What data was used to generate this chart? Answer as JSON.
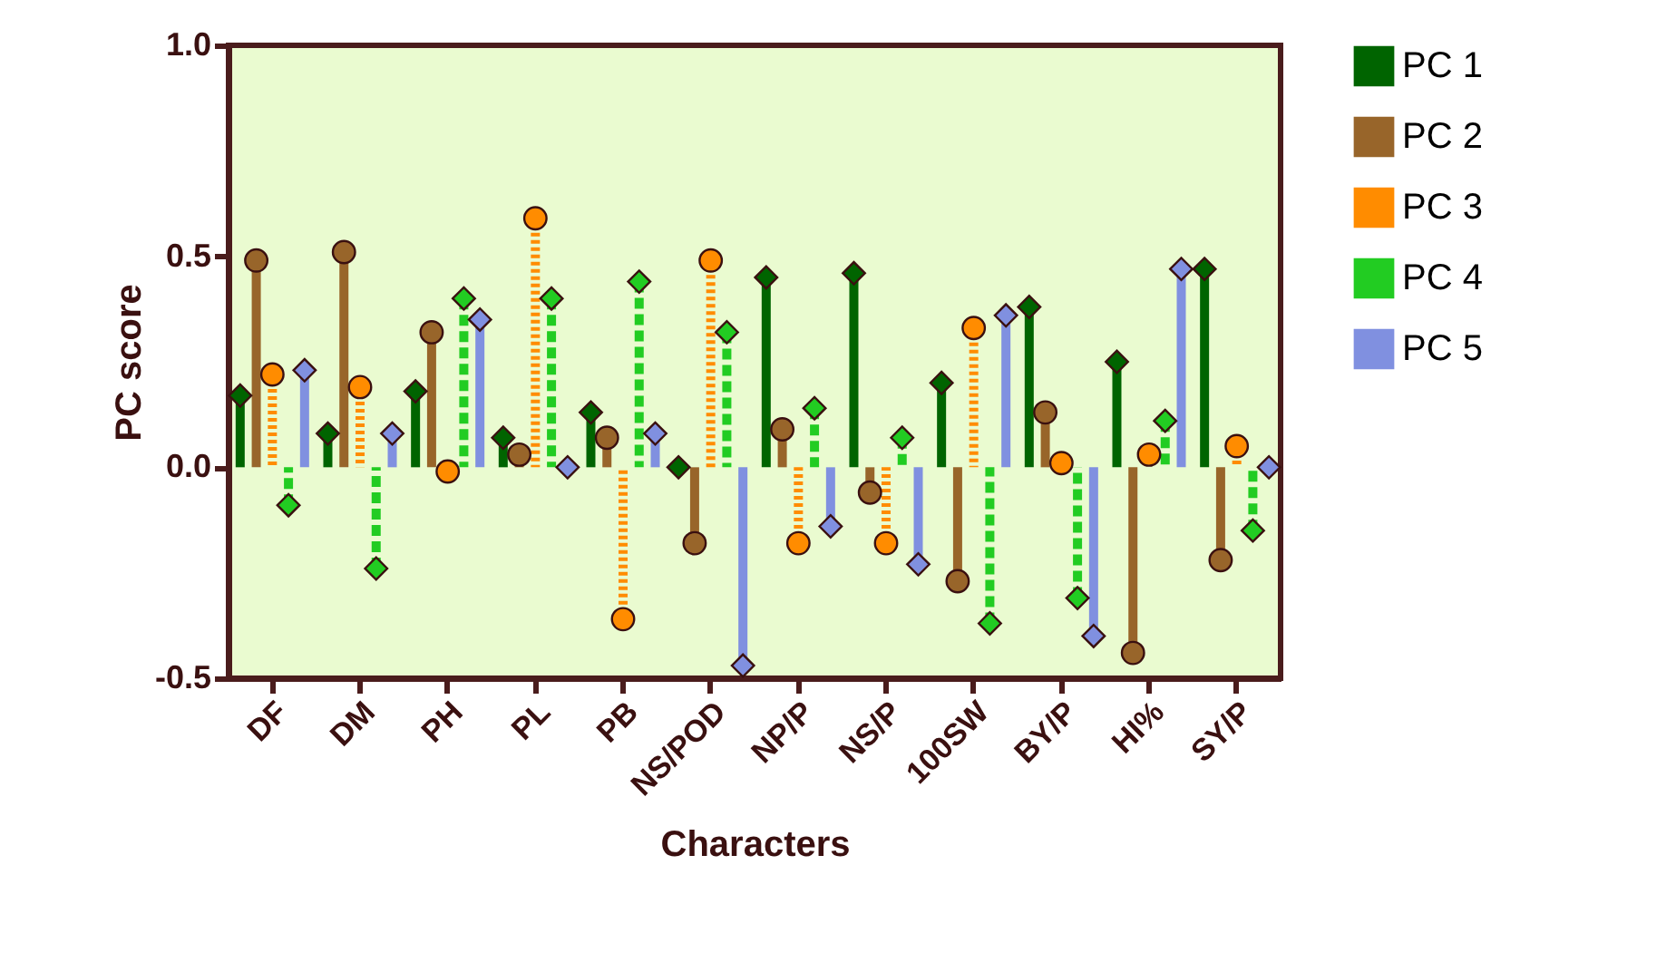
{
  "chart_data": {
    "type": "lollipop",
    "xlabel": "Characters",
    "ylabel": "PC score",
    "categories": [
      "DF",
      "DM",
      "PH",
      "PL",
      "PB",
      "NS/POD",
      "NP/P",
      "NS/P",
      "100SW",
      "BY/P",
      "HI%",
      "SY/P"
    ],
    "series": [
      {
        "name": "PC 1",
        "color": "#006400",
        "marker": "diamond",
        "values": [
          0.17,
          0.08,
          0.18,
          0.07,
          0.13,
          0.0,
          0.45,
          0.46,
          0.2,
          0.38,
          0.25,
          0.47
        ]
      },
      {
        "name": "PC 2",
        "color": "#98652a",
        "marker": "circle",
        "values": [
          0.49,
          0.51,
          0.32,
          0.03,
          0.07,
          -0.18,
          0.09,
          -0.06,
          -0.27,
          0.13,
          -0.44,
          -0.22
        ]
      },
      {
        "name": "PC 3",
        "color": "#ff8c00",
        "marker": "circle",
        "line_style": "dotted",
        "values": [
          0.22,
          0.19,
          -0.01,
          0.59,
          -0.36,
          0.49,
          -0.18,
          -0.18,
          0.33,
          0.01,
          0.03,
          0.05
        ]
      },
      {
        "name": "PC 4",
        "color": "#22cc22",
        "marker": "diamond",
        "line_style": "dashed",
        "values": [
          -0.09,
          -0.24,
          0.4,
          0.4,
          0.44,
          0.32,
          0.14,
          0.07,
          -0.37,
          -0.31,
          0.11,
          -0.15
        ]
      },
      {
        "name": "PC 5",
        "color": "#8090e0",
        "marker": "diamond",
        "values": [
          0.23,
          0.08,
          0.35,
          0.0,
          0.08,
          -0.47,
          -0.14,
          -0.23,
          0.36,
          -0.4,
          0.47,
          0.0
        ]
      }
    ],
    "ylim": [
      -0.5,
      1.0
    ],
    "yticks": [
      {
        "value": -0.5,
        "label": "-0.5"
      },
      {
        "value": 0,
        "label": "0.0"
      },
      {
        "value": 0.5,
        "label": "0.5"
      },
      {
        "value": 1.0,
        "label": "1.0"
      }
    ],
    "grid": false,
    "legend": "top right"
  }
}
